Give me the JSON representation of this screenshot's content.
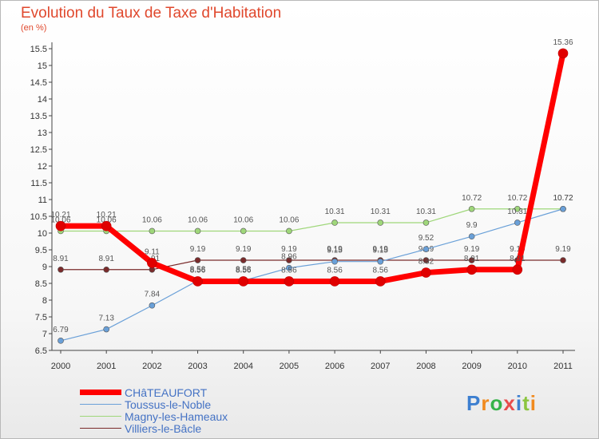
{
  "header": {
    "title": "Evolution du Taux de Taxe d'Habitation",
    "unit": "(en %)"
  },
  "logo": {
    "text": "Proxiti",
    "colors": [
      "#3d7fd0",
      "#f18a1e",
      "#37b34a",
      "#e84c4c",
      "#3d7fd0",
      "#8bc53f",
      "#f18a1e"
    ]
  },
  "chart_data": {
    "type": "line",
    "x": [
      2000,
      2001,
      2002,
      2003,
      2004,
      2005,
      2006,
      2007,
      2008,
      2009,
      2010,
      2011
    ],
    "ylim": [
      6.5,
      15.5
    ],
    "yticks": [
      "6.5",
      "7",
      "7.5",
      "8",
      "8.5",
      "9",
      "9.5",
      "10",
      "10.5",
      "11",
      "11.5",
      "12",
      "12.5",
      "13",
      "13.5",
      "14",
      "14.5",
      "15",
      "15.5"
    ],
    "xticks": [
      "2000",
      "2001",
      "2002",
      "2003",
      "2004",
      "2005",
      "2006",
      "2007",
      "2008",
      "2009",
      "2010",
      "2011"
    ],
    "grid": false,
    "legend_position": "bottom-left",
    "series": [
      {
        "name": "Villiers-le-Bâcle",
        "color": "#7a2b2b",
        "width": 1.2,
        "values": [
          8.91,
          8.91,
          8.91,
          9.19,
          9.19,
          9.19,
          9.19,
          9.19,
          9.19,
          9.19,
          9.19,
          9.19
        ],
        "labels": [
          "8.91",
          "8.91",
          "8.91",
          "9.19",
          "9.19",
          "9.19",
          "9.19",
          "9.19",
          "9.19",
          "9.19",
          "9.19",
          "9.19"
        ]
      },
      {
        "name": "Magny-les-Hameaux",
        "color": "#9fd77a",
        "width": 1.2,
        "values": [
          10.06,
          10.06,
          10.06,
          10.06,
          10.06,
          10.06,
          10.31,
          10.31,
          10.31,
          10.72,
          10.72,
          10.72
        ],
        "labels": [
          "10.06",
          "10.06",
          "10.06",
          "10.06",
          "10.06",
          "10.06",
          "10.31",
          "10.31",
          "10.31",
          "10.72",
          "10.72",
          "10.72"
        ]
      },
      {
        "name": "Toussus-le-Noble",
        "color": "#6aa0d8",
        "width": 1.2,
        "values": [
          6.79,
          7.13,
          7.84,
          8.58,
          8.58,
          8.96,
          9.15,
          9.15,
          9.52,
          9.9,
          10.31,
          10.72
        ],
        "labels": [
          "6.79",
          "7.13",
          "7.84",
          "8.58",
          "8.58",
          "8.96",
          "9.15",
          "9.15",
          "9.52",
          "9.9",
          "10.31",
          "10.72"
        ]
      },
      {
        "name": "CHâTEAUFORT",
        "color": "#ff0000",
        "width": 7,
        "values": [
          10.21,
          10.21,
          9.11,
          8.56,
          8.56,
          8.56,
          8.56,
          8.56,
          8.82,
          8.91,
          8.91,
          15.36
        ],
        "labels": [
          "10.21",
          "10.21",
          "9.11",
          "8.56",
          "8.56",
          "8.56",
          "8.56",
          "8.56",
          "8.82",
          "8.91",
          "8.91",
          "15.36"
        ]
      }
    ]
  },
  "legend": [
    {
      "label": "CHâTEAUFORT",
      "color": "#ff0000",
      "thickness": 7
    },
    {
      "label": "Toussus-le-Noble",
      "color": "#6aa0d8",
      "thickness": 1.5
    },
    {
      "label": "Magny-les-Hameaux",
      "color": "#9fd77a",
      "thickness": 1.5
    },
    {
      "label": "Villiers-le-Bâcle",
      "color": "#7a2b2b",
      "thickness": 1.5
    }
  ]
}
